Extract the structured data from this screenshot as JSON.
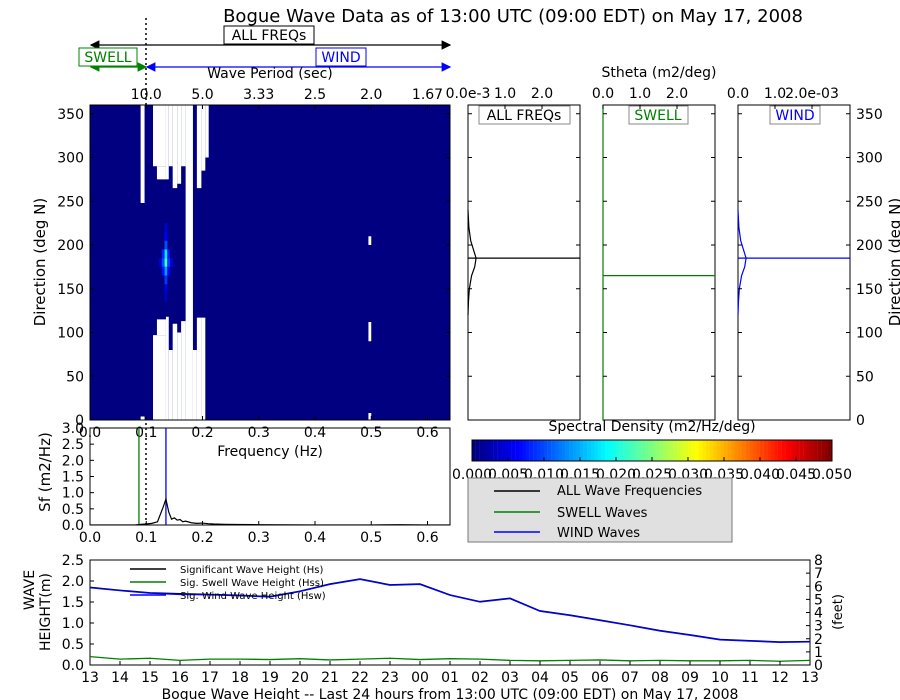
{
  "title": "Bogue Wave Data as of 13:00 UTC (09:00 EDT) on May 17, 2008",
  "band_labels": {
    "all": "ALL FREQs",
    "swell": "SWELL",
    "wind": "WIND"
  },
  "colors": {
    "all": "#000000",
    "swell": "#008000",
    "wind": "#0000ff",
    "legend_bg": "#e0e0e0"
  },
  "chart_data": [
    {
      "id": "directional-spectrum",
      "type": "heatmap",
      "xlabel": "Frequency (Hz)",
      "ylabel": "Direction (deg N)",
      "top_axis_label": "Wave Period (sec)",
      "xlim": [
        0.0,
        0.64
      ],
      "ylim": [
        0,
        360
      ],
      "x_ticks": [
        "0.0",
        "0.1",
        "0.2",
        "0.3",
        "0.4",
        "0.5",
        "0.6"
      ],
      "y_ticks": [
        "0",
        "50",
        "100",
        "150",
        "200",
        "250",
        "300",
        "350"
      ],
      "top_ticks": [
        {
          "freq": 0.1,
          "label": "10.0"
        },
        {
          "freq": 0.2,
          "label": "5.0"
        },
        {
          "freq": 0.3,
          "label": "3.33"
        },
        {
          "freq": 0.4,
          "label": "2.5"
        },
        {
          "freq": 0.5,
          "label": "2.0"
        },
        {
          "freq": 0.6,
          "label": "1.67"
        }
      ],
      "separation_frequency": 0.1,
      "background_value": 0.0,
      "nodata_regions": [
        {
          "f": [
            0.09,
            0.097
          ],
          "dir": [
            0,
            4
          ]
        },
        {
          "f": [
            0.09,
            0.097
          ],
          "dir": [
            248,
            360
          ]
        },
        {
          "f": [
            0.112,
            0.135
          ],
          "dir": [
            0,
            97
          ]
        },
        {
          "f": [
            0.112,
            0.135
          ],
          "dir": [
            290,
            360
          ]
        },
        {
          "f": [
            0.119,
            0.135
          ],
          "dir": [
            97,
            115
          ]
        },
        {
          "f": [
            0.119,
            0.135
          ],
          "dir": [
            275,
            290
          ]
        },
        {
          "f": [
            0.135,
            0.14
          ],
          "dir": [
            0,
            118
          ]
        },
        {
          "f": [
            0.135,
            0.14
          ],
          "dir": [
            275,
            360
          ]
        },
        {
          "f": [
            0.14,
            0.147
          ],
          "dir": [
            0,
            80
          ]
        },
        {
          "f": [
            0.14,
            0.147
          ],
          "dir": [
            290,
            360
          ]
        },
        {
          "f": [
            0.147,
            0.155
          ],
          "dir": [
            0,
            110
          ]
        },
        {
          "f": [
            0.147,
            0.155
          ],
          "dir": [
            265,
            360
          ]
        },
        {
          "f": [
            0.155,
            0.162
          ],
          "dir": [
            0,
            100
          ]
        },
        {
          "f": [
            0.155,
            0.162
          ],
          "dir": [
            270,
            360
          ]
        },
        {
          "f": [
            0.162,
            0.17
          ],
          "dir": [
            0,
            113
          ]
        },
        {
          "f": [
            0.162,
            0.17
          ],
          "dir": [
            290,
            360
          ]
        },
        {
          "f": [
            0.17,
            0.183
          ],
          "dir": [
            0,
            360
          ]
        },
        {
          "f": [
            0.183,
            0.19
          ],
          "dir": [
            0,
            80
          ]
        },
        {
          "f": [
            0.19,
            0.198
          ],
          "dir": [
            0,
            117
          ]
        },
        {
          "f": [
            0.19,
            0.198
          ],
          "dir": [
            265,
            360
          ]
        },
        {
          "f": [
            0.198,
            0.205
          ],
          "dir": [
            0,
            117
          ]
        },
        {
          "f": [
            0.198,
            0.205
          ],
          "dir": [
            285,
            360
          ]
        },
        {
          "f": [
            0.205,
            0.211
          ],
          "dir": [
            300,
            360
          ]
        },
        {
          "f": [
            0.495,
            0.5
          ],
          "dir": [
            0,
            8
          ]
        },
        {
          "f": [
            0.495,
            0.5
          ],
          "dir": [
            90,
            112
          ]
        },
        {
          "f": [
            0.495,
            0.5
          ],
          "dir": [
            200,
            210
          ]
        }
      ],
      "peak_cells": [
        {
          "f": 0.135,
          "dir": 180,
          "value": 0.022
        },
        {
          "f": 0.135,
          "dir": 190,
          "value": 0.018
        },
        {
          "f": 0.135,
          "dir": 170,
          "value": 0.014
        },
        {
          "f": 0.135,
          "dir": 200,
          "value": 0.01
        },
        {
          "f": 0.135,
          "dir": 160,
          "value": 0.009
        },
        {
          "f": 0.135,
          "dir": 210,
          "value": 0.006
        },
        {
          "f": 0.135,
          "dir": 150,
          "value": 0.005
        },
        {
          "f": 0.13,
          "dir": 180,
          "value": 0.01
        },
        {
          "f": 0.13,
          "dir": 190,
          "value": 0.008
        },
        {
          "f": 0.13,
          "dir": 170,
          "value": 0.007
        },
        {
          "f": 0.14,
          "dir": 180,
          "value": 0.009
        },
        {
          "f": 0.14,
          "dir": 190,
          "value": 0.007
        },
        {
          "f": 0.14,
          "dir": 170,
          "value": 0.006
        },
        {
          "f": 0.145,
          "dir": 180,
          "value": 0.005
        },
        {
          "f": 0.125,
          "dir": 180,
          "value": 0.004
        },
        {
          "f": 0.135,
          "dir": 220,
          "value": 0.004
        },
        {
          "f": 0.135,
          "dir": 140,
          "value": 0.003
        }
      ]
    },
    {
      "id": "stheta-all",
      "type": "line",
      "panel_label": "ALL FREQs",
      "top_label": "Stheta (m2/deg)",
      "tick_labels": [
        "0.0e-3",
        "1.0",
        "2.0"
      ],
      "xlim": [
        0.0,
        0.0025
      ],
      "ylim": [
        0,
        360
      ],
      "mean_direction": 185,
      "series": [
        {
          "values": [
            [
              0.0,
              120
            ],
            [
              1e-05,
              135
            ],
            [
              3e-05,
              150
            ],
            [
              8e-05,
              165
            ],
            [
              0.00015,
              175
            ],
            [
              0.00018,
              185
            ],
            [
              0.00012,
              195
            ],
            [
              6e-05,
              205
            ],
            [
              2e-05,
              220
            ],
            [
              0.0,
              240
            ]
          ]
        }
      ]
    },
    {
      "id": "stheta-swell",
      "type": "line",
      "panel_label": "SWELL",
      "tick_labels": [
        "0.0",
        "1.0",
        "2.0"
      ],
      "xlim": [
        0.0,
        2.5
      ],
      "ylim": [
        0,
        360
      ],
      "mean_direction": 165,
      "series": [
        {
          "values": [
            [
              0.0,
              0
            ],
            [
              0.0,
              360
            ]
          ]
        }
      ]
    },
    {
      "id": "stheta-wind",
      "type": "line",
      "panel_label": "WIND",
      "tick_labels": [
        "0.0",
        "1.0",
        "2.0e-03"
      ],
      "xlim": [
        0.0,
        0.0025
      ],
      "ylim": [
        0,
        360
      ],
      "mean_direction": 185,
      "y_ticks": [
        "0",
        "50",
        "100",
        "150",
        "200",
        "250",
        "300",
        "350"
      ],
      "series": [
        {
          "values": [
            [
              0.0,
              120
            ],
            [
              1e-05,
              135
            ],
            [
              3e-05,
              150
            ],
            [
              8e-05,
              165
            ],
            [
              0.00015,
              175
            ],
            [
              0.00018,
              185
            ],
            [
              0.00012,
              195
            ],
            [
              6e-05,
              205
            ],
            [
              2e-05,
              220
            ],
            [
              0.0,
              240
            ]
          ]
        }
      ]
    },
    {
      "id": "frequency-spectrum",
      "type": "line",
      "ylabel": "Sf (m2/Hz)",
      "xlim": [
        0.0,
        0.64
      ],
      "ylim": [
        0.0,
        3.0
      ],
      "x_ticks": [
        "0.0",
        "0.1",
        "0.2",
        "0.3",
        "0.4",
        "0.5",
        "0.6"
      ],
      "y_ticks": [
        "0.0",
        "0.5",
        "1.0",
        "1.5",
        "2.0",
        "2.5",
        "3.0"
      ],
      "swell_peak_frequency": 0.087,
      "wind_peak_frequency": 0.135,
      "separation_frequency": 0.1,
      "series": [
        {
          "values": [
            [
              0.0,
              0.0
            ],
            [
              0.08,
              0.0
            ],
            [
              0.09,
              0.02
            ],
            [
              0.1,
              0.03
            ],
            [
              0.11,
              0.05
            ],
            [
              0.12,
              0.1
            ],
            [
              0.13,
              0.55
            ],
            [
              0.135,
              0.8
            ],
            [
              0.14,
              0.4
            ],
            [
              0.145,
              0.18
            ],
            [
              0.15,
              0.22
            ],
            [
              0.155,
              0.15
            ],
            [
              0.16,
              0.17
            ],
            [
              0.165,
              0.1
            ],
            [
              0.17,
              0.12
            ],
            [
              0.18,
              0.07
            ],
            [
              0.19,
              0.05
            ],
            [
              0.2,
              0.06
            ],
            [
              0.21,
              0.04
            ],
            [
              0.22,
              0.03
            ],
            [
              0.24,
              0.02
            ],
            [
              0.26,
              0.015
            ],
            [
              0.3,
              0.01
            ],
            [
              0.35,
              0.005
            ],
            [
              0.4,
              0.0
            ],
            [
              0.5,
              0.0
            ],
            [
              0.55,
              0.01
            ],
            [
              0.6,
              0.0
            ],
            [
              0.64,
              0.0
            ]
          ]
        }
      ]
    },
    {
      "id": "colorbar",
      "type": "heatmap",
      "title": "Spectral Density (m2/Hz/deg)",
      "range": [
        0.0,
        0.05
      ],
      "ticks": [
        "0.000",
        "0.005",
        "0.010",
        "0.015",
        "0.020",
        "0.025",
        "0.030",
        "0.035",
        "0.040",
        "0.045",
        "0.050"
      ],
      "colormap": "jet"
    },
    {
      "id": "legend",
      "entries": [
        "ALL Wave Frequencies",
        "SWELL Waves",
        "WIND Waves"
      ]
    },
    {
      "id": "wave-height-history",
      "type": "line",
      "xlabel": "Bogue Wave Height -- Last 24 hours from 13:00 UTC (09:00 EDT) on May 17, 2008",
      "ylabel": [
        "WAVE",
        "HEIGHT(m)"
      ],
      "ylabel_right": "(feet)",
      "ylim": [
        0.0,
        2.5
      ],
      "ylim_right": [
        0,
        8
      ],
      "y_ticks": [
        "0.0",
        "0.5",
        "1.0",
        "1.5",
        "2.0",
        "2.5"
      ],
      "y_ticks_right": [
        "0",
        "1",
        "2",
        "3",
        "4",
        "5",
        "6",
        "7",
        "8"
      ],
      "x_ticks": [
        "13",
        "14",
        "15",
        "16",
        "17",
        "18",
        "19",
        "20",
        "21",
        "22",
        "23",
        "00",
        "01",
        "02",
        "03",
        "04",
        "05",
        "06",
        "07",
        "08",
        "09",
        "10",
        "11",
        "12",
        "13"
      ],
      "legend": [
        "Significant Wave Height (Hs)",
        "Sig. Swell Wave Height (Hss)",
        "Sig. Wind Wave Height (Hsw)"
      ],
      "series": [
        {
          "name": "Significant Wave Height (Hs)",
          "values": [
            1.85,
            1.78,
            1.72,
            1.7,
            1.68,
            1.66,
            1.63,
            1.76,
            1.93,
            2.05,
            1.91,
            1.93,
            1.67,
            1.51,
            1.59,
            1.29,
            1.19,
            1.07,
            0.95,
            0.82,
            0.72,
            0.61,
            0.58,
            0.55,
            0.56
          ]
        },
        {
          "name": "Sig. Swell Wave Height (Hss)",
          "values": [
            0.2,
            0.14,
            0.16,
            0.11,
            0.14,
            0.14,
            0.13,
            0.15,
            0.12,
            0.14,
            0.16,
            0.13,
            0.15,
            0.14,
            0.11,
            0.1,
            0.11,
            0.12,
            0.1,
            0.11,
            0.1,
            0.1,
            0.11,
            0.09,
            0.11
          ]
        },
        {
          "name": "Sig. Wind Wave Height (Hsw)",
          "values": [
            1.84,
            1.77,
            1.71,
            1.68,
            1.67,
            1.65,
            1.62,
            1.75,
            1.92,
            2.04,
            1.9,
            1.92,
            1.66,
            1.5,
            1.58,
            1.28,
            1.18,
            1.06,
            0.94,
            0.81,
            0.71,
            0.6,
            0.57,
            0.54,
            0.55
          ]
        }
      ]
    }
  ]
}
